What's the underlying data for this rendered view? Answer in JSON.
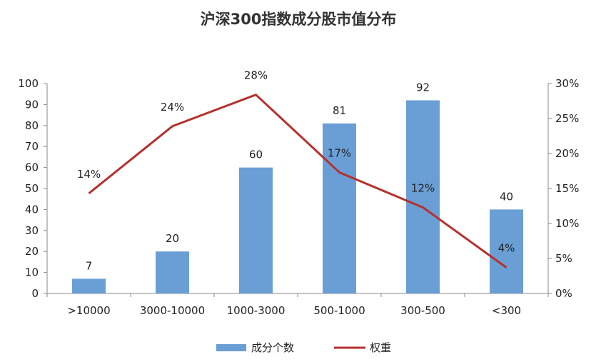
{
  "chart_data": {
    "type": "bar+line",
    "title": "沪深300指数成分股市值分布",
    "categories": [
      ">10000",
      "3000-10000",
      "1000-3000",
      "500-1000",
      "300-500",
      "<300"
    ],
    "series": [
      {
        "name": "成分个数",
        "type": "bar",
        "axis": "left",
        "values": [
          7,
          20,
          60,
          81,
          92,
          40
        ],
        "labels": [
          "7",
          "20",
          "60",
          "81",
          "92",
          "40"
        ],
        "color": "#6a9fd6"
      },
      {
        "name": "权重",
        "type": "line",
        "axis": "right",
        "values": [
          14.3,
          23.9,
          28.4,
          17.3,
          12.3,
          3.7
        ],
        "labels": [
          "14%",
          "24%",
          "28%",
          "17%",
          "12%",
          "4%"
        ],
        "color": "#b5312d"
      }
    ],
    "y_left": {
      "min": 0,
      "max": 100,
      "step": 10,
      "ticks": [
        "0",
        "10",
        "20",
        "30",
        "40",
        "50",
        "60",
        "70",
        "80",
        "90",
        "100"
      ]
    },
    "y_right": {
      "min": 0,
      "max": 30,
      "step": 5,
      "ticks": [
        "0%",
        "5%",
        "10%",
        "15%",
        "20%",
        "25%",
        "30%"
      ]
    },
    "legend": {
      "placement": "bottom",
      "items": [
        "成分个数",
        "权重"
      ]
    },
    "grid": false
  }
}
